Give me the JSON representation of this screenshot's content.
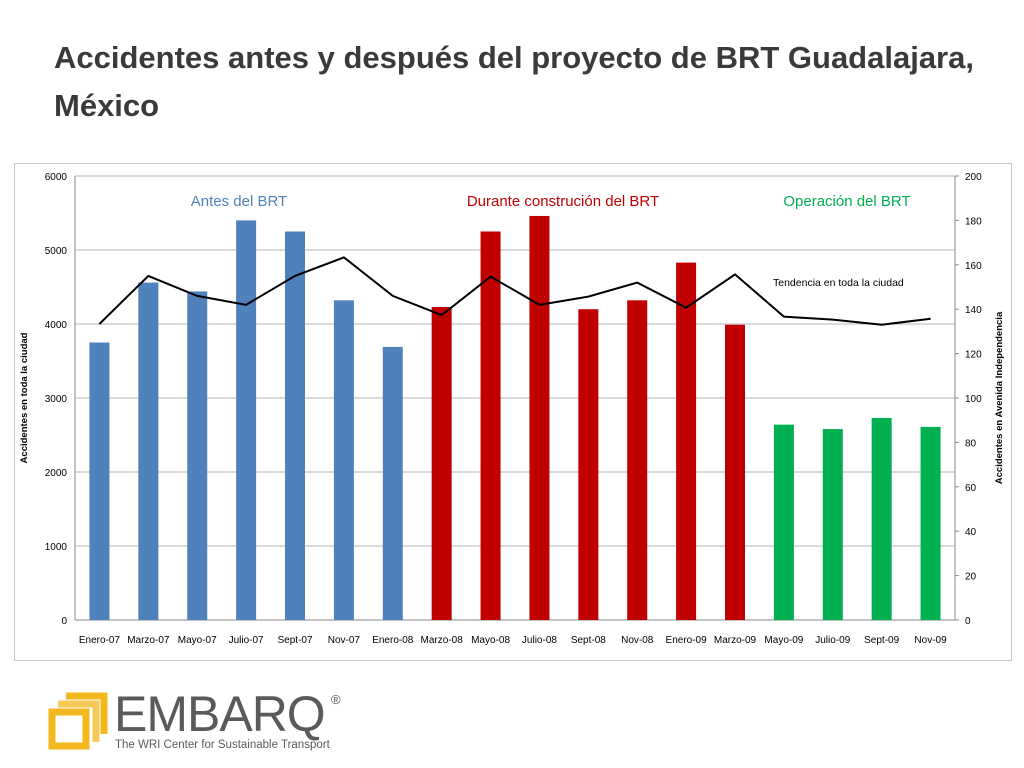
{
  "slide": {
    "title": "Accidentes antes y después del proyecto de BRT Guadalajara, México"
  },
  "logo": {
    "wordmark": "EMBARQ",
    "registered": "®",
    "tagline": "The WRI Center for Sustainable Transport",
    "icon": "embarq-square-icon",
    "color": "#f2b81e"
  },
  "chart_data": {
    "type": "bar",
    "categories": [
      "Enero-07",
      "Marzo-07",
      "Mayo-07",
      "Julio-07",
      "Sept-07",
      "Nov-07",
      "Enero-08",
      "Marzo-08",
      "Mayo-08",
      "Julio-08",
      "Sept-08",
      "Nov-08",
      "Enero-09",
      "Marzo-09",
      "Mayo-09",
      "Julio-09",
      "Sept-09",
      "Nov-09"
    ],
    "bars": {
      "axis": "right",
      "values": [
        125,
        152,
        148,
        180,
        175,
        144,
        123,
        141,
        175,
        182,
        140,
        144,
        161,
        133,
        88,
        86,
        91,
        87
      ],
      "phase": [
        "antes",
        "antes",
        "antes",
        "antes",
        "antes",
        "antes",
        "antes",
        "durante",
        "durante",
        "durante",
        "durante",
        "durante",
        "durante",
        "durante",
        "operacion",
        "operacion",
        "operacion",
        "operacion"
      ]
    },
    "series": [
      {
        "name": "Tendencia en toda la ciudad",
        "type": "line",
        "axis": "left",
        "values": [
          4000,
          4650,
          4380,
          4260,
          4650,
          4900,
          4380,
          4120,
          4640,
          4260,
          4370,
          4560,
          4220,
          4670,
          4100,
          4060,
          3990,
          4070
        ]
      }
    ],
    "phases": [
      {
        "key": "antes",
        "label": "Antes del BRT",
        "color": "#4f81bd"
      },
      {
        "key": "durante",
        "label": "Durante construción del BRT",
        "color": "#c00000"
      },
      {
        "key": "operacion",
        "label": "Operación del BRT",
        "color": "#00b050"
      }
    ],
    "ylabel": "Accidentes en toda la ciudad",
    "y2label": "Accidentes en  Avenida Independencia",
    "ylim": [
      0,
      6000
    ],
    "yticks": [
      0,
      1000,
      2000,
      3000,
      4000,
      5000,
      6000
    ],
    "y2lim": [
      0,
      200
    ],
    "y2ticks": [
      0,
      20,
      40,
      60,
      80,
      100,
      120,
      140,
      160,
      180,
      200
    ],
    "grid": true,
    "line_color": "#000000"
  }
}
